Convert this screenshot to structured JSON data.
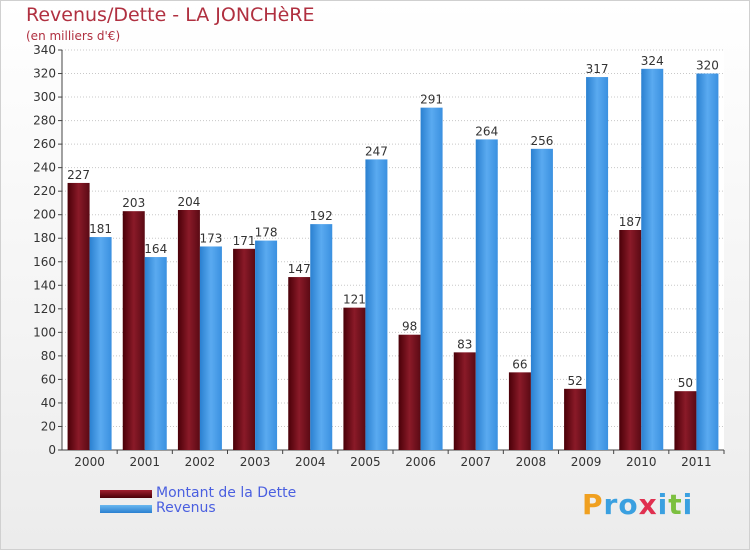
{
  "header": {
    "title": "Revenus/Dette - LA JONCHèRE",
    "subtitle": "(en milliers d'€)"
  },
  "colors": {
    "dette": "#7a1020",
    "revenus": "#3f9be8",
    "title": "#b03040",
    "legend_text": "#4a5fe0"
  },
  "logo": {
    "text": "Proxiti",
    "letters": [
      "P",
      "r",
      "o",
      "x",
      "i",
      "t",
      "i"
    ],
    "letter_colors": [
      "#f0a020",
      "#3aa0e0",
      "#3aa0e0",
      "#e03050",
      "#3aa0e0",
      "#7cc040",
      "#3aa0e0"
    ]
  },
  "legend": {
    "items": [
      {
        "label": "Montant de la Dette",
        "color": "#7a1020"
      },
      {
        "label": "Revenus",
        "color": "#3f9be8"
      }
    ]
  },
  "chart_data": {
    "type": "bar",
    "title": "Revenus/Dette - LA JONCHèRE",
    "subtitle": "(en milliers d'€)",
    "categories": [
      "2000",
      "2001",
      "2002",
      "2003",
      "2004",
      "2005",
      "2006",
      "2007",
      "2008",
      "2009",
      "2010",
      "2011"
    ],
    "series": [
      {
        "name": "Montant de la Dette",
        "values": [
          227,
          203,
          204,
          171,
          147,
          121,
          98,
          83,
          66,
          52,
          187,
          50
        ]
      },
      {
        "name": "Revenus",
        "values": [
          181,
          164,
          173,
          178,
          192,
          247,
          291,
          264,
          256,
          317,
          324,
          320
        ]
      }
    ],
    "ylim": [
      0,
      340
    ],
    "yticks": [
      0,
      20,
      40,
      60,
      80,
      100,
      120,
      140,
      160,
      180,
      200,
      220,
      240,
      260,
      280,
      300,
      320,
      340
    ],
    "grid": true,
    "legend_position": "bottom-left"
  }
}
